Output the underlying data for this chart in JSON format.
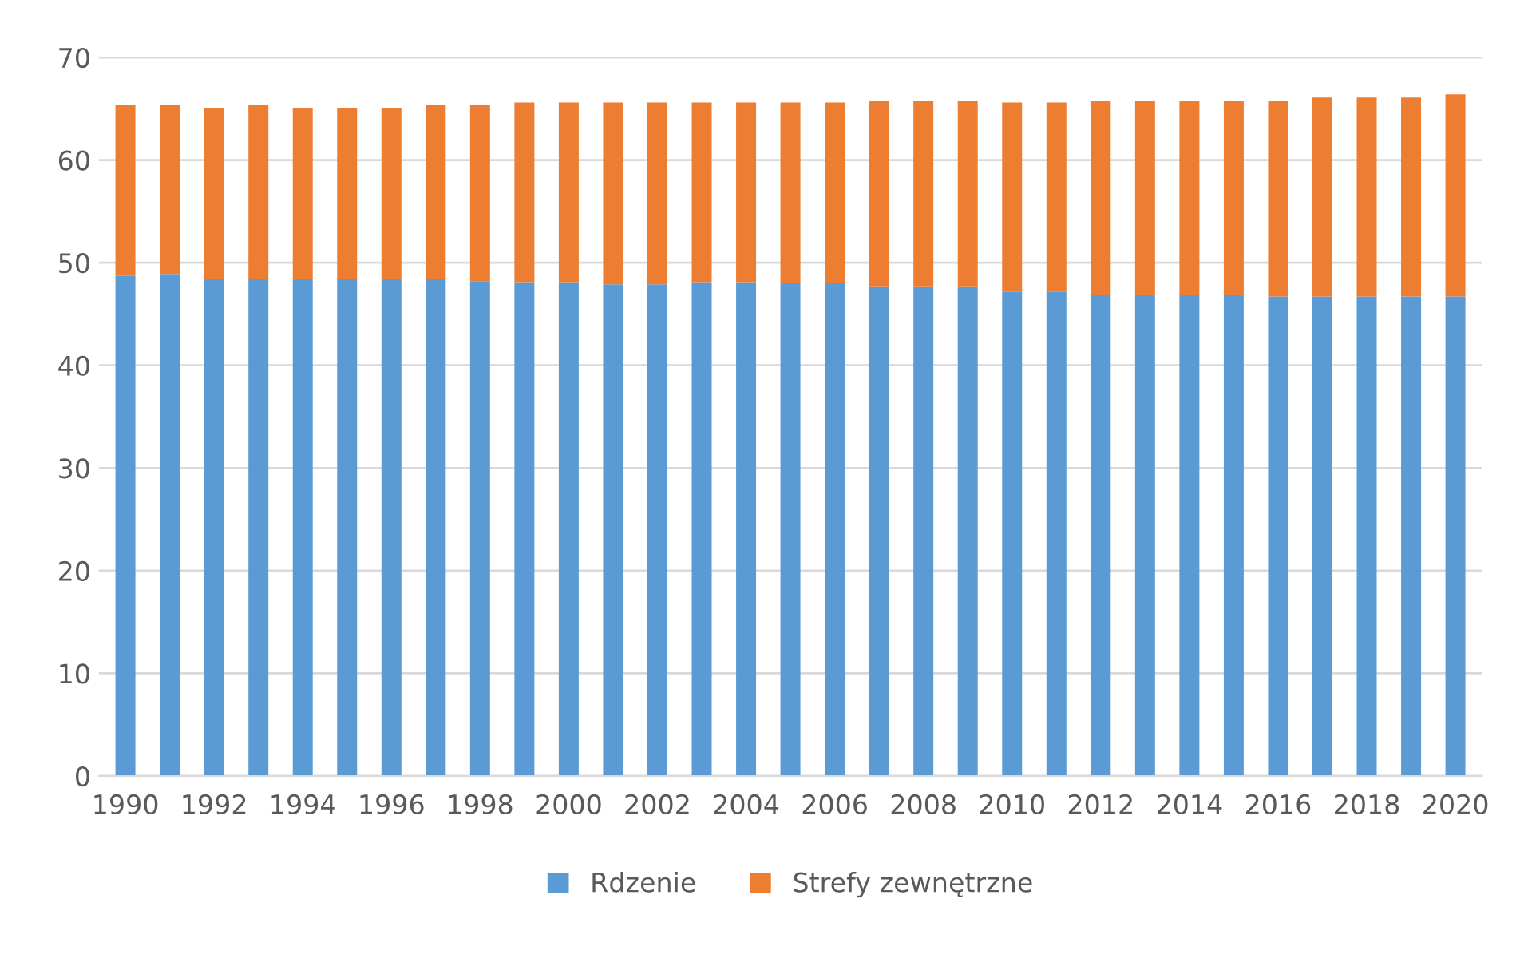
{
  "chart_data": {
    "type": "bar",
    "stacked": true,
    "categories": [
      "1990",
      null,
      "1992",
      null,
      "1994",
      null,
      "1996",
      null,
      "1998",
      null,
      "2000",
      null,
      "2002",
      null,
      "2004",
      null,
      "2006",
      null,
      "2008",
      null,
      "2010",
      null,
      "2012",
      null,
      "2014",
      null,
      "2016",
      null,
      "2018",
      null,
      "2020"
    ],
    "series": [
      {
        "name": "Rdzenie",
        "color": "#5b9bd5",
        "values": [
          48.7,
          48.9,
          48.4,
          48.4,
          48.4,
          48.4,
          48.4,
          48.4,
          48.2,
          48.1,
          48.1,
          47.9,
          47.9,
          48.1,
          48.1,
          48.0,
          48.0,
          47.7,
          47.7,
          47.7,
          47.2,
          47.2,
          46.9,
          46.9,
          46.9,
          46.9,
          46.7,
          46.7,
          46.7,
          46.7,
          46.7
        ]
      },
      {
        "name": "Strefy zewnętrzne",
        "color": "#ed7d31",
        "values": [
          16.7,
          16.5,
          16.7,
          17.0,
          16.7,
          16.7,
          16.7,
          17.0,
          17.2,
          17.5,
          17.5,
          17.7,
          17.7,
          17.5,
          17.5,
          17.6,
          17.6,
          18.1,
          18.1,
          18.1,
          18.4,
          18.4,
          18.9,
          18.9,
          18.9,
          18.9,
          19.1,
          19.4,
          19.4,
          19.4,
          19.7
        ]
      }
    ],
    "ylim": [
      0,
      70
    ],
    "yticks": [
      0,
      10,
      20,
      30,
      40,
      50,
      60,
      70
    ],
    "grid": "y",
    "legend": "bottom"
  }
}
